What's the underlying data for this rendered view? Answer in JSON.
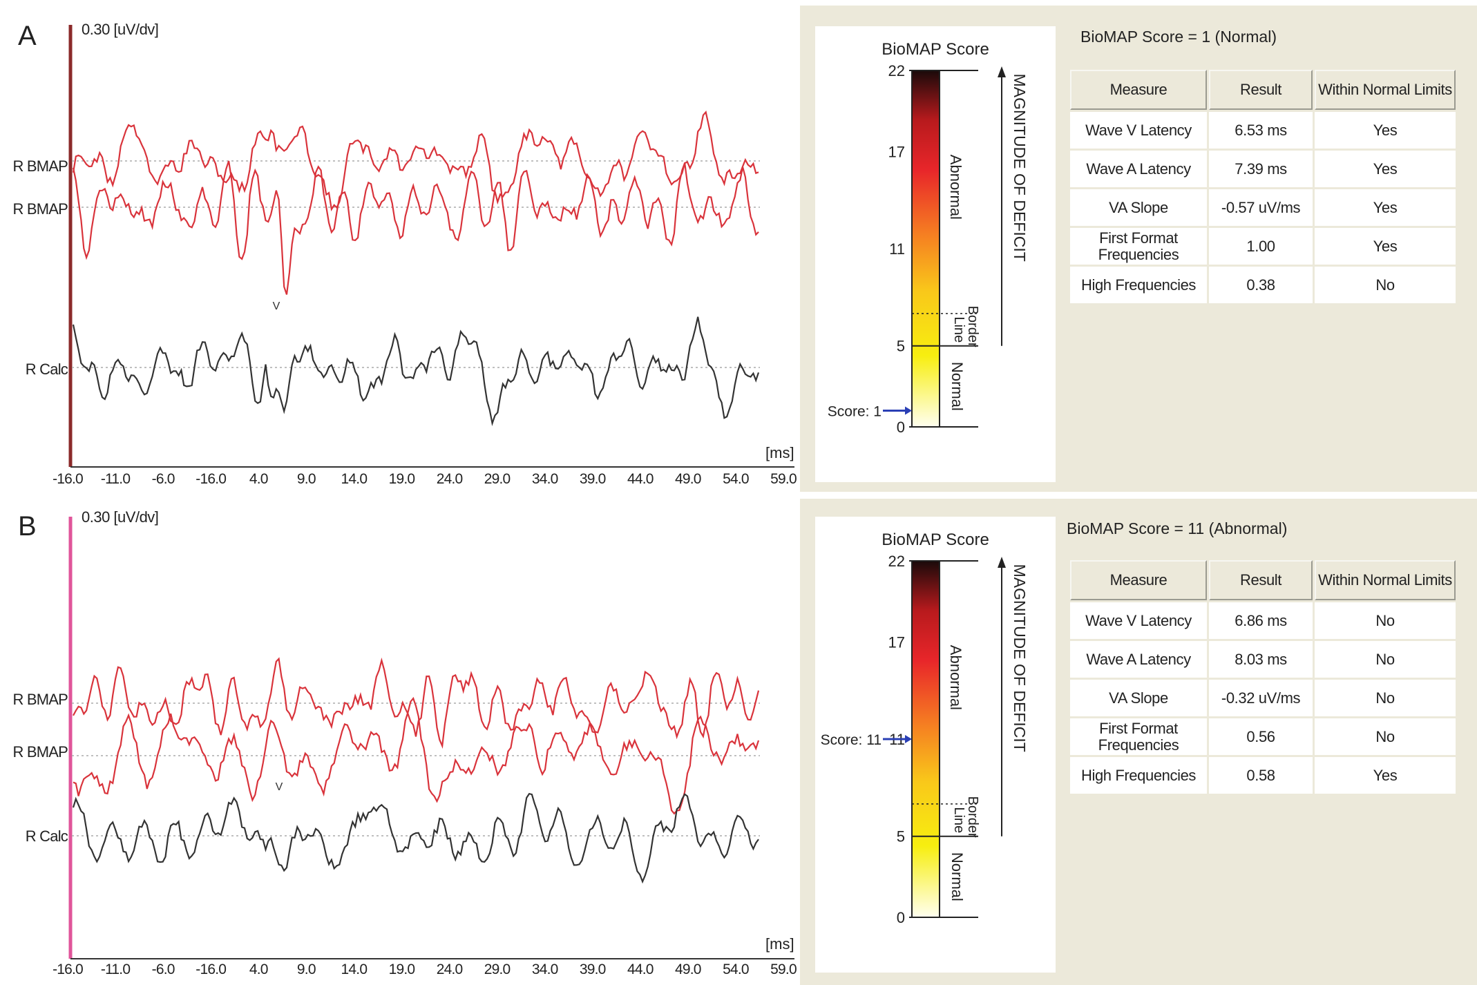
{
  "panels": [
    {
      "letter": "A",
      "scale_label": "0.30 [uV/dv]",
      "channels": [
        "R BMAP",
        "R BMAP",
        "R Calc"
      ],
      "x_unit": "[ms]",
      "x_ticks": [
        "-16.0",
        "-11.0",
        "-6.0",
        "-16.0",
        "4.0",
        "9.0",
        "14.0",
        "19.0",
        "24.0",
        "29.0",
        "34.0",
        "39.0",
        "44.0",
        "49.0",
        "54.0",
        "59.0"
      ],
      "peak_marker": "V",
      "score": {
        "title": "BioMAP Score",
        "ticks": [
          "22",
          "17",
          "11",
          "5",
          "0"
        ],
        "score_label": "Score: 1",
        "score_value": 1,
        "zone_abnormal": "Abnormal",
        "zone_border": "Border\nLine",
        "zone_normal": "Normal",
        "axis_label": "MAGNITUDE OF DEFICIT"
      },
      "summary": "BioMAP Score = 1 (Normal)",
      "table": {
        "headers": [
          "Measure",
          "Result",
          "Within Normal Limits"
        ],
        "rows": [
          [
            "Wave V Latency",
            "6.53 ms",
            "Yes"
          ],
          [
            "Wave A Latency",
            "7.39 ms",
            "Yes"
          ],
          [
            "VA Slope",
            "-0.57 uV/ms",
            "Yes"
          ],
          [
            "First Format Frequencies",
            "1.00",
            "Yes"
          ],
          [
            "High Frequencies",
            "0.38",
            "No"
          ]
        ]
      }
    },
    {
      "letter": "B",
      "scale_label": "0.30 [uV/dv]",
      "channels": [
        "R BMAP",
        "R BMAP",
        "R Calc"
      ],
      "x_unit": "[ms]",
      "x_ticks": [
        "-16.0",
        "-11.0",
        "-6.0",
        "-16.0",
        "4.0",
        "9.0",
        "14.0",
        "19.0",
        "24.0",
        "29.0",
        "34.0",
        "39.0",
        "44.0",
        "49.0",
        "54.0",
        "59.0"
      ],
      "peak_marker": "V",
      "score": {
        "title": "BioMAP Score",
        "ticks": [
          "22",
          "17",
          "11",
          "5",
          "0"
        ],
        "score_label": "Score: 11",
        "score_value": 11,
        "zone_abnormal": "Abnormal",
        "zone_border": "Border\nLine",
        "zone_normal": "Normal",
        "axis_label": "MAGNITUDE OF DEFICIT"
      },
      "summary": "BioMAP Score = 11 (Abnormal)",
      "table": {
        "headers": [
          "Measure",
          "Result",
          "Within Normal Limits"
        ],
        "rows": [
          [
            "Wave V Latency",
            "6.86 ms",
            "No"
          ],
          [
            "Wave A Latency",
            "8.03 ms",
            "No"
          ],
          [
            "VA Slope",
            "-0.32 uV/ms",
            "No"
          ],
          [
            "First Format Frequencies",
            "0.56",
            "No"
          ],
          [
            "High Frequencies",
            "0.58",
            "Yes"
          ]
        ]
      }
    }
  ],
  "colors": {
    "bmap_trace": "#d9333b",
    "calc_trace": "#333333",
    "cursor_A": "#8b2a2a",
    "cursor_B": "#e0559a",
    "side_bg": "#ece9da",
    "arrow": "#2a3fb5"
  }
}
